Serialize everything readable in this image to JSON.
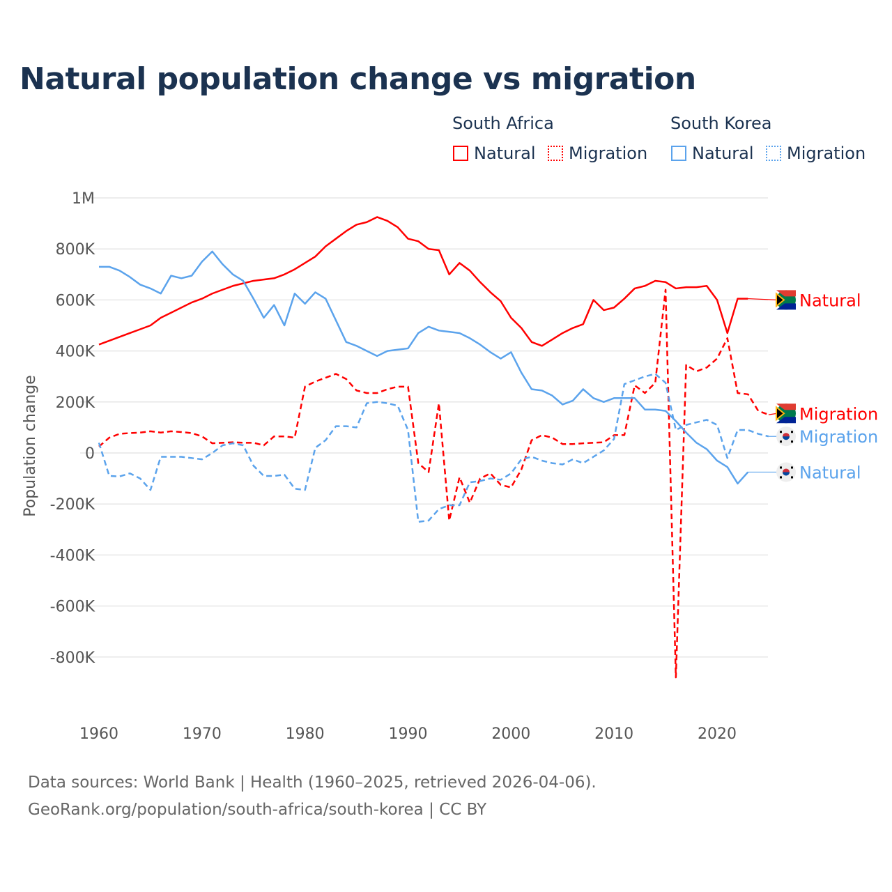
{
  "title": "Natural population change vs migration",
  "legend": {
    "groups": [
      {
        "name": "South Africa",
        "items": [
          {
            "label": "Natural",
            "style": "solid",
            "color": "#ff0000"
          },
          {
            "label": "Migration",
            "style": "dotted",
            "color": "#ff0000"
          }
        ]
      },
      {
        "name": "South Korea",
        "items": [
          {
            "label": "Natural",
            "style": "solid",
            "color": "#5ba3ec"
          },
          {
            "label": "Migration",
            "style": "dotted",
            "color": "#5ba3ec"
          }
        ]
      }
    ]
  },
  "footer": {
    "line1": "Data sources: World Bank | Health (1960–2025, retrieved 2026-04-06).",
    "line2": "GeoRank.org/population/south-africa/south-korea | CC BY"
  },
  "chart_data": {
    "type": "line",
    "title": "Natural population change vs migration",
    "xlabel": "",
    "ylabel": "Population change",
    "xlim": [
      1960,
      2025
    ],
    "ylim": [
      -1000000,
      1000000
    ],
    "x_ticks": [
      {
        "v": 1960,
        "label": "1960"
      },
      {
        "v": 1970,
        "label": "1970"
      },
      {
        "v": 1980,
        "label": "1980"
      },
      {
        "v": 1990,
        "label": "1990"
      },
      {
        "v": 2000,
        "label": "2000"
      },
      {
        "v": 2010,
        "label": "2010"
      },
      {
        "v": 2020,
        "label": "2020"
      }
    ],
    "y_ticks": [
      {
        "v": 1000,
        "label": "1M"
      },
      {
        "v": 800,
        "label": "800K"
      },
      {
        "v": 600,
        "label": "600K"
      },
      {
        "v": 400,
        "label": "400K"
      },
      {
        "v": 200,
        "label": "200K"
      },
      {
        "v": 0,
        "label": "0"
      },
      {
        "v": -200,
        "label": "-200K"
      },
      {
        "v": -400,
        "label": "-400K"
      },
      {
        "v": -600,
        "label": "-600K"
      },
      {
        "v": -800,
        "label": "-800K"
      }
    ],
    "units_note": "values in thousands",
    "grid": true,
    "start_year": 1960,
    "series": [
      {
        "name": "South Africa Natural",
        "end_label": "Natural",
        "color": "#ff0000",
        "dash": false,
        "flag": "south-africa",
        "label_value": 600,
        "values": [
          425,
          440,
          455,
          470,
          485,
          500,
          530,
          550,
          570,
          590,
          605,
          625,
          640,
          655,
          665,
          675,
          680,
          685,
          700,
          720,
          745,
          770,
          810,
          840,
          870,
          895,
          905,
          925,
          910,
          885,
          840,
          830,
          800,
          795,
          700,
          745,
          715,
          670,
          630,
          595,
          530,
          490,
          435,
          420,
          445,
          470,
          490,
          505,
          600,
          560,
          570,
          605,
          645,
          655,
          675,
          670,
          645,
          650,
          650,
          655,
          600,
          470,
          605,
          605
        ]
      },
      {
        "name": "South Africa Migration",
        "end_label": "Migration",
        "color": "#ff0000",
        "dash": true,
        "flag": "south-africa",
        "label_value": 155,
        "values": [
          25,
          60,
          75,
          78,
          80,
          85,
          80,
          85,
          82,
          78,
          65,
          38,
          40,
          42,
          40,
          40,
          30,
          65,
          65,
          60,
          260,
          280,
          295,
          310,
          290,
          245,
          235,
          235,
          250,
          260,
          260,
          -40,
          -75,
          195,
          -265,
          -95,
          -195,
          -100,
          -80,
          -125,
          -135,
          -65,
          50,
          70,
          60,
          35,
          35,
          38,
          40,
          42,
          70,
          70,
          265,
          235,
          275,
          640,
          -880,
          345,
          320,
          335,
          370,
          450,
          235,
          230,
          165,
          150
        ]
      },
      {
        "name": "South Korea Migration",
        "end_label": "Migration",
        "color": "#5ba3ec",
        "dash": true,
        "flag": "south-korea",
        "label_value": 65,
        "values": [
          40,
          -90,
          -92,
          -80,
          -100,
          -145,
          -15,
          -15,
          -15,
          -20,
          -25,
          0,
          30,
          38,
          30,
          -50,
          -90,
          -90,
          -85,
          -140,
          -145,
          20,
          50,
          105,
          105,
          100,
          195,
          200,
          195,
          185,
          90,
          -270,
          -265,
          -220,
          -205,
          -205,
          -115,
          -110,
          -100,
          -105,
          -80,
          -25,
          -15,
          -30,
          -40,
          -45,
          -25,
          -40,
          -15,
          10,
          55,
          270,
          285,
          300,
          310,
          275,
          90,
          110,
          120,
          130,
          110,
          -20,
          90,
          90,
          75,
          65
        ]
      },
      {
        "name": "South Korea Natural",
        "end_label": "Natural",
        "color": "#5ba3ec",
        "dash": false,
        "flag": "south-korea",
        "label_value": -75,
        "values": [
          730,
          730,
          715,
          690,
          660,
          645,
          625,
          695,
          685,
          695,
          750,
          790,
          740,
          700,
          675,
          605,
          530,
          580,
          500,
          625,
          585,
          630,
          605,
          520,
          435,
          420,
          400,
          380,
          400,
          405,
          410,
          470,
          495,
          480,
          475,
          470,
          450,
          425,
          395,
          370,
          395,
          315,
          250,
          245,
          225,
          190,
          205,
          250,
          215,
          200,
          215,
          215,
          215,
          170,
          170,
          165,
          125,
          80,
          40,
          15,
          -30,
          -55,
          -120,
          -75
        ]
      }
    ]
  }
}
